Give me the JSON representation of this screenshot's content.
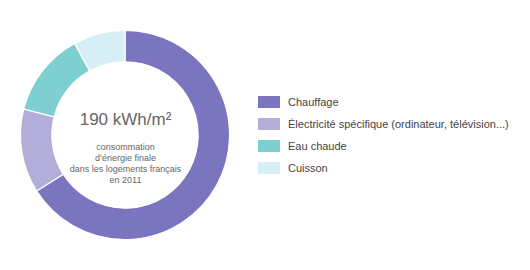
{
  "chart_data": {
    "type": "pie",
    "title": "190 kWh/m²",
    "subtitle": "consommation\nd’énergie finale\ndans les logements français\nen 2011",
    "categories": [
      "Chauffage",
      "Électricité spécifique (ordinateur, télévision...)",
      "Eau chaude",
      "Cuisson"
    ],
    "values": [
      66,
      13,
      13,
      8
    ],
    "colors": [
      "#7b74be",
      "#b3aed9",
      "#7ecfcf",
      "#d6eef5"
    ],
    "legend": "right"
  }
}
